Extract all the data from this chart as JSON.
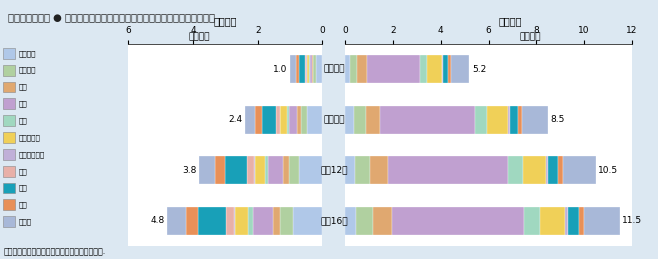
{
  "title": "第１－８－３図 ● 専攻分野別にみた学生数（大学院（修士課程））の推移",
  "years": [
    "平成２年",
    "平成７年",
    "平成12年",
    "平成16年"
  ],
  "categories": [
    "人文科学",
    "社会科学",
    "理学",
    "工学",
    "農学",
    "医学・歯学",
    "その他の保健",
    "家政",
    "教育",
    "芸術",
    "その他"
  ],
  "colors": [
    "#b0c8e8",
    "#b0d0a0",
    "#e0a870",
    "#c0a0d0",
    "#a0d8c0",
    "#f0d058",
    "#c0b0d8",
    "#e8b0a8",
    "#18a0b8",
    "#e89058",
    "#a8b8d8"
  ],
  "female_totals": [
    1.0,
    2.4,
    3.8,
    4.8
  ],
  "male_totals": [
    5.2,
    8.5,
    10.5,
    11.5
  ],
  "female_fracs": [
    [
      0.2,
      0.08,
      0.05,
      0.05,
      0.03,
      0.08,
      0.01,
      0.05,
      0.18,
      0.09,
      0.18
    ],
    [
      0.2,
      0.08,
      0.05,
      0.1,
      0.03,
      0.08,
      0.01,
      0.05,
      0.18,
      0.09,
      0.13
    ],
    [
      0.19,
      0.08,
      0.05,
      0.12,
      0.03,
      0.08,
      0.01,
      0.05,
      0.18,
      0.08,
      0.13
    ],
    [
      0.19,
      0.08,
      0.05,
      0.13,
      0.03,
      0.08,
      0.01,
      0.05,
      0.18,
      0.08,
      0.12
    ]
  ],
  "male_fracs": [
    [
      0.04,
      0.05,
      0.08,
      0.43,
      0.06,
      0.12,
      0.01,
      0.0,
      0.04,
      0.02,
      0.15
    ],
    [
      0.04,
      0.06,
      0.07,
      0.47,
      0.06,
      0.1,
      0.01,
      0.0,
      0.04,
      0.02,
      0.13
    ],
    [
      0.04,
      0.06,
      0.07,
      0.48,
      0.06,
      0.09,
      0.01,
      0.0,
      0.04,
      0.02,
      0.13
    ],
    [
      0.04,
      0.06,
      0.07,
      0.48,
      0.06,
      0.09,
      0.01,
      0.0,
      0.04,
      0.02,
      0.13
    ]
  ],
  "bg_color": "#dce8f2",
  "chart_bg": "#ffffff",
  "header_bg": "#c8d8e8",
  "header_text": "#222222",
  "female_label": "＜女性＞",
  "male_label": "＜男性＞",
  "unit_label": "（万人）",
  "note": "（備考）文部科学者「学校基本調査」より作成.",
  "female_xticks": [
    6,
    4,
    2,
    0
  ],
  "male_xticks": [
    0,
    2,
    4,
    6,
    8,
    10,
    12
  ]
}
